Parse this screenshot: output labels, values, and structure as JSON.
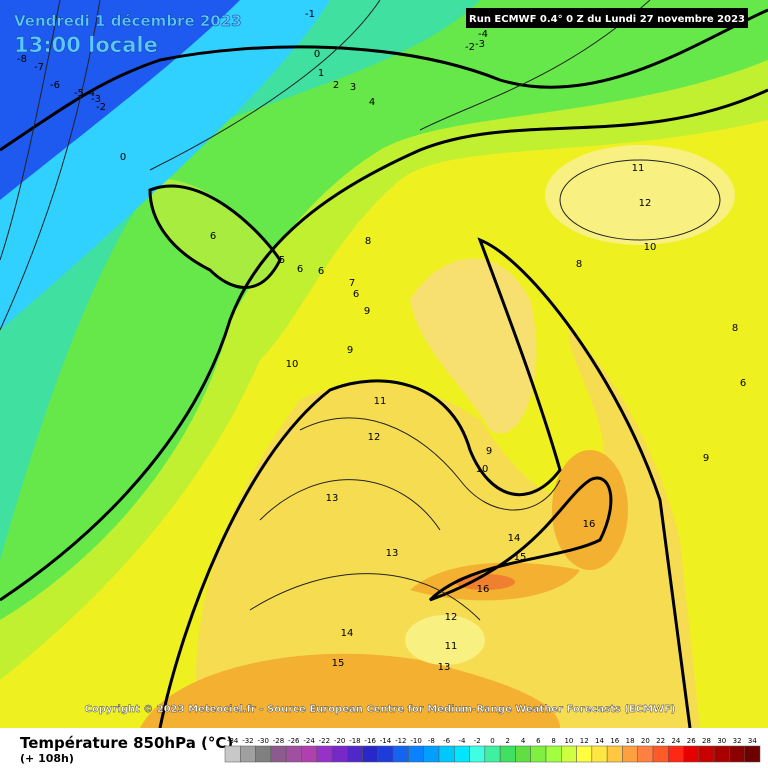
{
  "header": {
    "date": "Vendredi 1 décembre 2023",
    "time": "13:00 locale",
    "run": "Run ECMWF 0.4° 0 Z du Lundi 27 novembre 2023"
  },
  "copyright": "Copyright © 2023 Meteociel.fr - Source European Centre for Medium-Range Weather Forecasts (ECMWF)",
  "map": {
    "contour_labels": [
      -1,
      0,
      1,
      2,
      3,
      4,
      -4,
      -3,
      -2,
      -8,
      -7,
      -6,
      -5,
      -4,
      -3,
      -2,
      0,
      6,
      5,
      6,
      6,
      7,
      6,
      8,
      9,
      9,
      10,
      11,
      12,
      13,
      13,
      14,
      15,
      11,
      12,
      10,
      8,
      8,
      6,
      9,
      9,
      10,
      14,
      15,
      16,
      16,
      12,
      11,
      13
    ]
  },
  "footer": {
    "title": "Température 850hPa (°C)",
    "subtitle": "(+ 108h)"
  },
  "legend": {
    "ticks": [
      -34,
      -32,
      -30,
      -28,
      -26,
      -24,
      -22,
      -20,
      -18,
      -16,
      -14,
      -12,
      -10,
      -8,
      -6,
      -4,
      -2,
      0,
      2,
      4,
      6,
      8,
      10,
      12,
      14,
      16,
      18,
      20,
      22,
      24,
      26,
      28,
      30,
      32,
      34
    ],
    "colors": [
      "#c8c8c8",
      "#a0a0a0",
      "#808080",
      "#8c5a8c",
      "#a050a0",
      "#b040b0",
      "#9632c8",
      "#7828c8",
      "#5028c8",
      "#2828c8",
      "#1e3cdc",
      "#1464f0",
      "#0a82ff",
      "#00a0ff",
      "#00c8ff",
      "#00e6ff",
      "#40ffe0",
      "#40f0a0",
      "#40e060",
      "#60e040",
      "#80f040",
      "#a0ff40",
      "#d0ff40",
      "#ffff40",
      "#ffe640",
      "#ffc840",
      "#ffa040",
      "#ff8040",
      "#ff5a28",
      "#ff2814",
      "#e60000",
      "#c80000",
      "#aa0000",
      "#8c0000",
      "#6e0000"
    ]
  }
}
